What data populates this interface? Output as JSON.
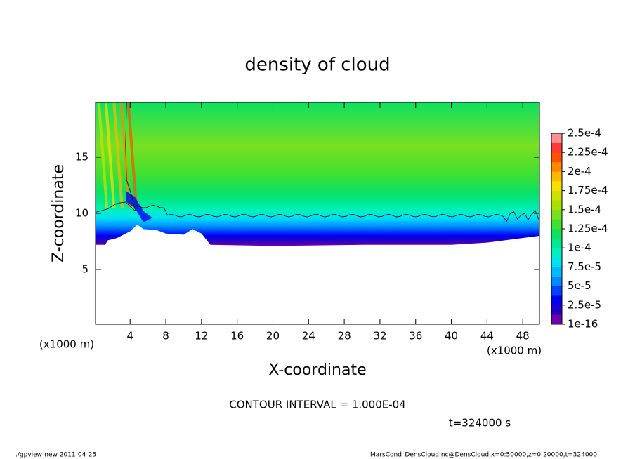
{
  "chart_data": {
    "type": "contour",
    "title": "density of cloud",
    "x_label": "X-coordinate",
    "y_label": "Z-coordinate",
    "x_unit": "(x1000 m)",
    "y_unit": "(x1000 m)",
    "xlim": [
      0.125,
      49.875
    ],
    "xticks": [
      4,
      8,
      12,
      16,
      20,
      24,
      28,
      32,
      36,
      40,
      44,
      48
    ],
    "ylim": [
      0.125,
      19.875
    ],
    "yticks": [
      5,
      10,
      15
    ],
    "colorbar_lim": [
      1e-16,
      0.00025
    ],
    "colorbar_ticks": [
      1e-16,
      {
        "value": 2.5e-05,
        "label": "2.5e-5"
      },
      {
        "value": 5e-05,
        "label": "5e-5"
      },
      {
        "value": 7.5e-05,
        "label": "7.5e-5"
      },
      {
        "value": 0.0001,
        "label": "1e-4"
      },
      {
        "value": 0.000125,
        "label": "1.25e-4"
      },
      {
        "value": 0.00015,
        "label": "1.5e-4"
      },
      {
        "value": 0.000175,
        "label": "1.75e-4"
      },
      {
        "value": 0.0002,
        "label": "2e-4"
      },
      {
        "value": 0.000225,
        "label": "2.25e-4"
      },
      {
        "value": 0.00025,
        "label": "2.5e-4"
      }
    ],
    "colors": [
      "#7000a8",
      "#2000c8",
      "#0000f0",
      "#0040ff",
      "#0088ff",
      "#00b8ff",
      "#00e0f0",
      "#00f0c0",
      "#00e890",
      "#10e060",
      "#40e030",
      "#78e020",
      "#a8e000",
      "#d0e000",
      "#f8e000",
      "#ffb800",
      "#ff8800",
      "#ff5000",
      "#ff3838",
      "#ff9090"
    ],
    "contour_interval": "CONTOUR INTERVAL = 1.000E-04",
    "time_label": "t=324000 s",
    "footer_left": "./gpview-new   2011-04-25",
    "footer_right": "MarsCond_DensCloud.nc@DensCloud,x=0:50000,z=0:20000,t=324000"
  }
}
